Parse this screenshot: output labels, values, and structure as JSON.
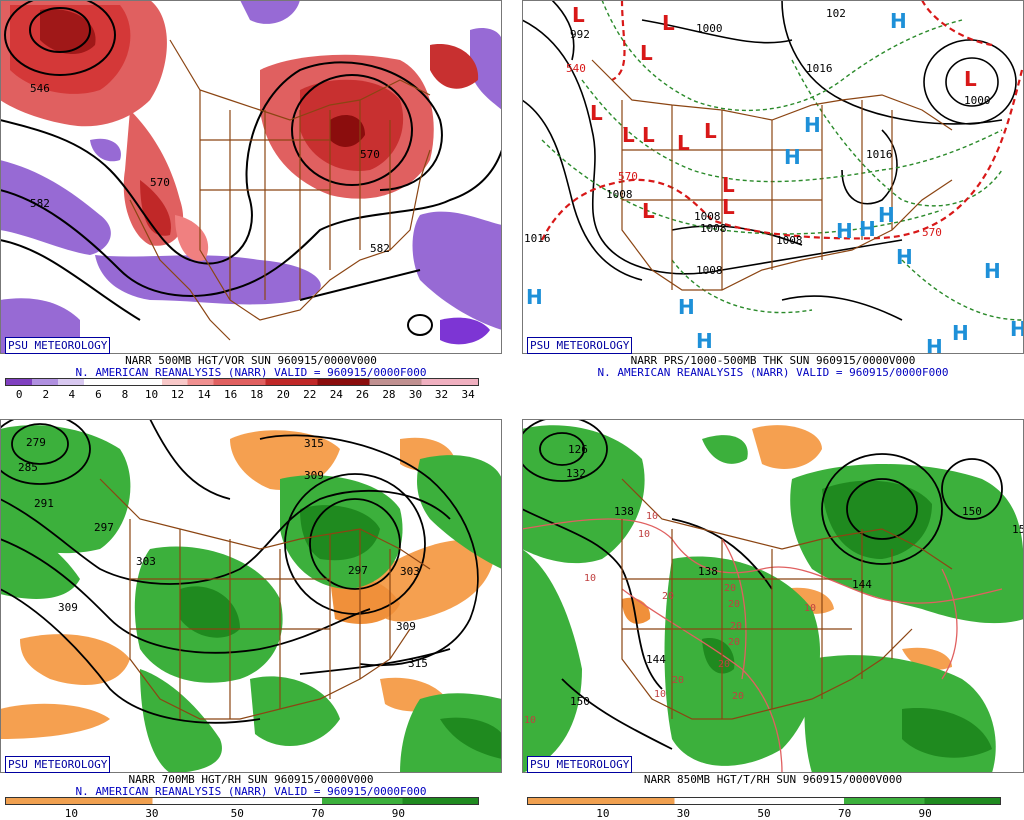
{
  "colors": {
    "vorticity_positive": "#d84040",
    "vorticity_negative": "#8040c0",
    "rh_moist": "#2aa02a",
    "rh_dry": "#f0a050",
    "high_marker": "#1e90d8",
    "low_marker": "#d81818",
    "borders": "#8b4513",
    "label_blue": "#0000c0"
  },
  "panels": [
    {
      "id": "top-left",
      "badge": "PSU METEOROLOGY",
      "line1": "NARR 500MB HGT/VOR SUN 960915/0000V000",
      "line2": "N. AMERICAN REANALYSIS (NARR) VALID = 960915/0000F000",
      "colorbar_ticks": [
        "0",
        "2",
        "4",
        "6",
        "8",
        "10",
        "12",
        "14",
        "16",
        "18",
        "20",
        "22",
        "24",
        "26",
        "28",
        "30",
        "32",
        "34"
      ],
      "contour_labels": [
        "546",
        "570",
        "582",
        "582",
        "570"
      ]
    },
    {
      "id": "top-right",
      "badge": "PSU METEOROLOGY",
      "line1": "NARR PRS/1000-500MB THK SUN 960915/0000V000",
      "line2": "N. AMERICAN REANALYSIS (NARR) VALID = 960915/0000F000",
      "contour_labels": [
        "992",
        "540",
        "1000",
        "102",
        "1016",
        "1000",
        "1008",
        "1008",
        "1008",
        "1008",
        "1008",
        "1016",
        "570",
        "570",
        "1016"
      ],
      "high_marker": "H",
      "low_marker": "L"
    },
    {
      "id": "bottom-left",
      "badge": "PSU METEOROLOGY",
      "line1": "NARR 700MB HGT/RH SUN 960915/0000V000",
      "line2": "N. AMERICAN REANALYSIS (NARR) VALID = 960915/0000F000",
      "colorbar_ticks": [
        "10",
        "30",
        "50",
        "70",
        "90"
      ],
      "contour_labels": [
        "279",
        "285",
        "291",
        "297",
        "303",
        "309",
        "315",
        "309",
        "297",
        "303",
        "309",
        "315"
      ]
    },
    {
      "id": "bottom-right",
      "badge": "PSU METEOROLOGY",
      "line1": "NARR 850MB HGT/T/RH SUN 960915/0000V000",
      "colorbar_ticks": [
        "10",
        "30",
        "50",
        "70",
        "90"
      ],
      "contour_labels": [
        "126",
        "132",
        "138",
        "144",
        "150",
        "138",
        "144",
        "150",
        "15"
      ],
      "temp_labels": [
        "10",
        "10",
        "10",
        "20",
        "20",
        "20",
        "20",
        "20",
        "10",
        "20",
        "20",
        "10",
        "20",
        "10"
      ]
    }
  ]
}
